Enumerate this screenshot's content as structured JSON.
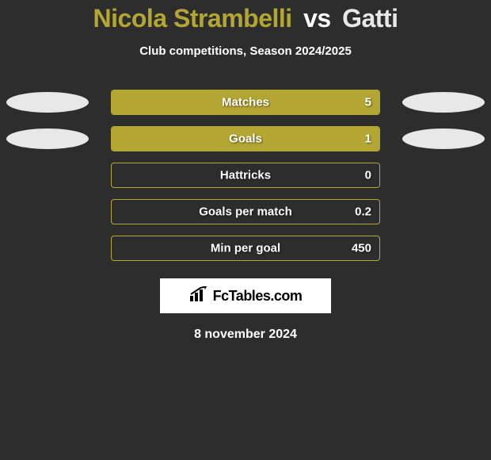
{
  "title": {
    "player1": "Nicola Strambelli",
    "vs": "vs",
    "player2": "Gatti"
  },
  "subtitle": "Club competitions, Season 2024/2025",
  "colors": {
    "olive": "#b4a633",
    "gray": "#e8e8e8",
    "bg": "#2d2d2d",
    "text": "#ffffff"
  },
  "stats": [
    {
      "label": "Matches",
      "value": "5",
      "fill_pct": 100,
      "left_ellipse": "gray",
      "right_ellipse": "gray"
    },
    {
      "label": "Goals",
      "value": "1",
      "fill_pct": 100,
      "left_ellipse": "gray",
      "right_ellipse": "gray"
    },
    {
      "label": "Hattricks",
      "value": "0",
      "fill_pct": 0,
      "left_ellipse": null,
      "right_ellipse": null
    },
    {
      "label": "Goals per match",
      "value": "0.2",
      "fill_pct": 0,
      "left_ellipse": null,
      "right_ellipse": null
    },
    {
      "label": "Min per goal",
      "value": "450",
      "fill_pct": 0,
      "left_ellipse": null,
      "right_ellipse": null
    }
  ],
  "logo_text": "FcTables.com",
  "date": "8 november 2024"
}
